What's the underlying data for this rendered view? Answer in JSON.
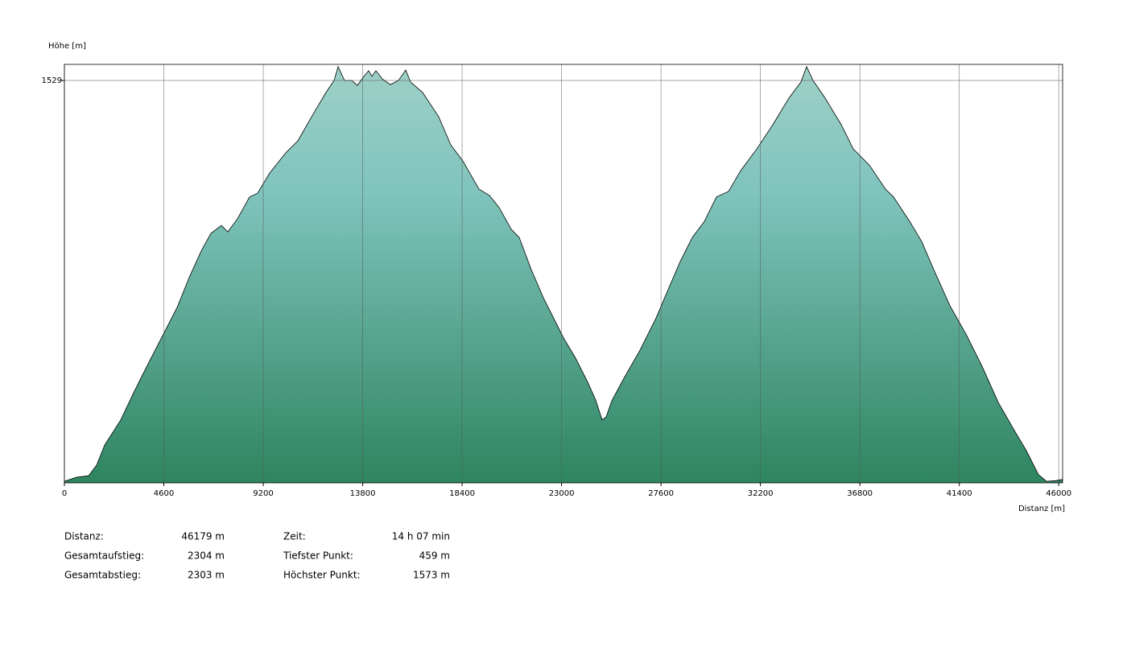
{
  "chart_data": {
    "type": "area",
    "y_label": "Höhe [m]",
    "x_label": "Distanz [m]",
    "xlim": [
      0,
      46179
    ],
    "ylim": [
      455,
      1572
    ],
    "xticks": [
      0,
      4600,
      9200,
      13800,
      18400,
      23000,
      27600,
      32200,
      36800,
      41400,
      46000
    ],
    "yticks": [
      1529
    ],
    "grid": true,
    "colors": [
      "#9dd0c6",
      "#80c4bd",
      "#2e8560"
    ],
    "x": [
      0,
      559,
      1117,
      1490,
      1862,
      2607,
      3166,
      3724,
      4581,
      5214,
      5772,
      6331,
      6778,
      7262,
      7560,
      8007,
      8565,
      8938,
      9496,
      10241,
      10800,
      11545,
      12103,
      12476,
      12662,
      12960,
      13295,
      13556,
      13854,
      14078,
      14227,
      14413,
      14711,
      15084,
      15456,
      15791,
      16015,
      16574,
      17318,
      17877,
      18435,
      19180,
      19664,
      20111,
      20670,
      21042,
      21601,
      22160,
      22718,
      23090,
      23649,
      24208,
      24580,
      24878,
      25064,
      25325,
      25883,
      26628,
      27373,
      27931,
      28490,
      29048,
      29607,
      30165,
      30724,
      31282,
      32027,
      32772,
      33517,
      34075,
      34336,
      34634,
      35192,
      35937,
      36496,
      37240,
      37985,
      38357,
      39102,
      39661,
      40219,
      40964,
      41709,
      42454,
      43198,
      43943,
      44502,
      45060,
      45433,
      45880,
      46179
    ],
    "values": [
      459,
      470,
      474,
      502,
      556,
      623,
      691,
      756,
      852,
      923,
      1003,
      1074,
      1121,
      1142,
      1125,
      1160,
      1218,
      1228,
      1282,
      1336,
      1368,
      1443,
      1497,
      1529,
      1566,
      1529,
      1529,
      1516,
      1540,
      1555,
      1540,
      1555,
      1533,
      1518,
      1529,
      1557,
      1525,
      1497,
      1432,
      1357,
      1314,
      1239,
      1222,
      1190,
      1132,
      1110,
      1024,
      949,
      885,
      842,
      788,
      724,
      676,
      623,
      631,
      674,
      734,
      809,
      895,
      971,
      1046,
      1110,
      1153,
      1218,
      1233,
      1288,
      1346,
      1411,
      1482,
      1525,
      1566,
      1529,
      1482,
      1411,
      1346,
      1303,
      1239,
      1218,
      1153,
      1099,
      1024,
      928,
      852,
      766,
      670,
      595,
      541,
      477,
      459,
      461,
      464
    ],
    "stats": [
      [
        {
          "label": "Distanz:",
          "value": "46179 m"
        },
        {
          "label": "Gesamtaufstieg:",
          "value": "2304 m"
        },
        {
          "label": "Gesamtabstieg:",
          "value": "2303 m"
        }
      ],
      [
        {
          "label": "Zeit:",
          "value": "14 h 07 min"
        },
        {
          "label": "Tiefster Punkt:",
          "value": "459 m"
        },
        {
          "label": "Höchster Punkt:",
          "value": "1573 m"
        }
      ]
    ]
  }
}
